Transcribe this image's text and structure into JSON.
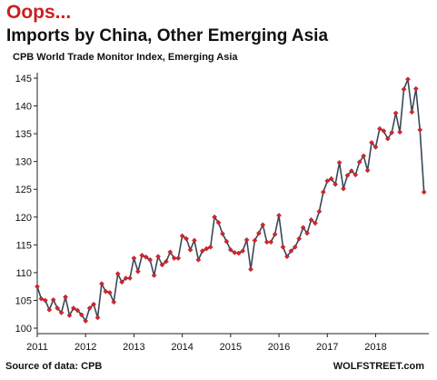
{
  "header": {
    "oops": "Oops...",
    "title": "Imports by China, Other Emerging Asia",
    "subtitle": "CPB World Trade Monitor Index, Emerging Asia"
  },
  "footer": {
    "source": "Source of data: CPB",
    "credit": "WOLFSTREET.com"
  },
  "colors": {
    "line": "#3a4758",
    "marker": "#d8232a",
    "axis": "#222222",
    "title_accent": "#cc1f1f"
  },
  "chart_data": {
    "type": "line",
    "title": "Imports by China, Other Emerging Asia",
    "subtitle": "CPB World Trade Monitor Index, Emerging Asia",
    "xlabel": "",
    "ylabel": "",
    "xlim": [
      2011,
      2019.1
    ],
    "ylim": [
      100,
      145
    ],
    "x_ticks": [
      {
        "value": 2011,
        "label": "2011"
      },
      {
        "value": 2012,
        "label": "2012"
      },
      {
        "value": 2013,
        "label": "2013"
      },
      {
        "value": 2014,
        "label": "2014"
      },
      {
        "value": 2015,
        "label": "2015"
      },
      {
        "value": 2016,
        "label": "2016"
      },
      {
        "value": 2017,
        "label": "2017"
      },
      {
        "value": 2018,
        "label": "2018"
      }
    ],
    "y_ticks": [
      {
        "value": 100,
        "label": "100"
      },
      {
        "value": 105,
        "label": "105"
      },
      {
        "value": 110,
        "label": "110"
      },
      {
        "value": 115,
        "label": "115"
      },
      {
        "value": 120,
        "label": "120"
      },
      {
        "value": 125,
        "label": "125"
      },
      {
        "value": 130,
        "label": "130"
      },
      {
        "value": 135,
        "label": "135"
      },
      {
        "value": 140,
        "label": "140"
      },
      {
        "value": 145,
        "label": "145"
      }
    ],
    "grid": false,
    "legend": "none",
    "series": [
      {
        "frequency": "monthly",
        "start": "2011-01",
        "values": [
          107.5,
          105.3,
          105.0,
          103.3,
          105.1,
          103.6,
          102.8,
          105.6,
          102.3,
          103.6,
          103.2,
          102.4,
          101.3,
          103.6,
          104.3,
          101.9,
          108.0,
          106.6,
          106.4,
          104.7,
          109.8,
          108.3,
          109.0,
          109.0,
          112.6,
          110.2,
          113.1,
          112.8,
          112.3,
          109.5,
          112.9,
          111.4,
          112.0,
          113.7,
          112.6,
          112.6,
          116.6,
          116.1,
          114.1,
          115.8,
          112.3,
          113.9,
          114.3,
          114.6,
          120.0,
          119.0,
          117.0,
          115.6,
          114.1,
          113.6,
          113.5,
          113.9,
          115.9,
          110.6,
          115.8,
          117.1,
          118.6,
          115.5,
          115.5,
          116.9,
          120.3,
          114.6,
          112.9,
          113.9,
          114.6,
          116.1,
          118.1,
          117.1,
          119.5,
          118.9,
          121.0,
          124.5,
          126.5,
          126.9,
          125.9,
          129.8,
          125.1,
          127.5,
          128.3,
          127.6,
          129.9,
          131.0,
          128.4,
          133.4,
          132.6,
          135.9,
          135.5,
          134.1,
          135.2,
          138.7,
          135.3,
          143.0,
          144.8,
          138.9,
          143.1,
          135.7,
          124.5
        ]
      }
    ]
  }
}
